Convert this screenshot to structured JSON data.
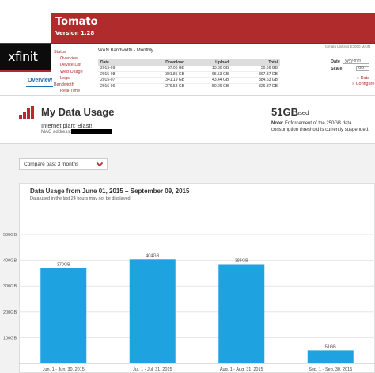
{
  "tomato": {
    "title": "Tomato",
    "version": "Version 1.28",
    "router_name": "tomato Linksys E3000 MAIN",
    "nav": [
      {
        "label": "Status",
        "level": 1
      },
      {
        "label": "Overview",
        "level": 2
      },
      {
        "label": "Device List",
        "level": 2
      },
      {
        "label": "Web Usage",
        "level": 2
      },
      {
        "label": "Logs",
        "level": 2
      },
      {
        "label": "Bandwidth",
        "level": 1
      },
      {
        "label": "Real-Time",
        "level": 2
      }
    ],
    "section_title": "WAN Bandwidth - Monthly",
    "table": {
      "headers": [
        "Date",
        "Download",
        "Upload",
        "Total"
      ],
      "rows": [
        [
          "2015-09",
          "37.06 GB",
          "13.30 GB",
          "50.36 GB"
        ],
        [
          "2015-08",
          "301.85 GB",
          "65.53 GB",
          "367.37 GB"
        ],
        [
          "2015-07",
          "341.19 GB",
          "43.44 GB",
          "384.63 GB"
        ],
        [
          "2015-06",
          "276.58 GB",
          "50.29 GB",
          "326.87 GB"
        ]
      ]
    },
    "date_label": "Date",
    "date_value": "yyyy-mm",
    "scale_label": "Scale",
    "scale_value": "GB",
    "links": [
      "» Data",
      "» Configure"
    ]
  },
  "xfinity": {
    "logo_text": "xfinit"
  },
  "usage": {
    "overview_tab": "Overview",
    "title": "My Data Usage",
    "plan": "Internet plan: Blast!",
    "mac_label": "MAC address:",
    "used_value": "51GB",
    "used_label": "used",
    "note_label": "Note:",
    "note_text": "Enforcement of the 250GB data consumption threshold is currently suspended.",
    "compare_selected": "Compare past 3 months"
  },
  "colors": {
    "tomato_red": "#b02c2c",
    "comcast_red": "#c0242d",
    "bar_blue": "#1fa3e0",
    "link_blue": "#1b6fb3"
  },
  "chart_data": {
    "type": "bar",
    "title": "Data Usage from June 01, 2015 – September 09, 2015",
    "subtitle": "Data used in the last 24 hours may not be displayed.",
    "categories": [
      "Jun. 1 - Jun. 30, 2015",
      "Jul. 1 - Jul. 31, 2015",
      "Aug. 1 - Aug. 31, 2015",
      "Sep. 1 - Sep. 30, 2015"
    ],
    "values": [
      370,
      404,
      385,
      51
    ],
    "value_labels": [
      "370GB",
      "404GB",
      "385GB",
      "51GB"
    ],
    "y_ticks": [
      100,
      200,
      300,
      400,
      500
    ],
    "y_tick_labels": [
      "100GB",
      "200GB",
      "300GB",
      "400GB",
      "500GB"
    ],
    "ylim": [
      0,
      540
    ],
    "grid": true,
    "legend": false
  }
}
